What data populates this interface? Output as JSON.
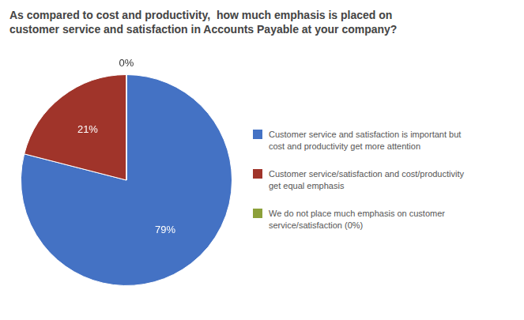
{
  "chart_data": {
    "type": "pie",
    "title": "As compared to cost and productivity,  how much emphasis is placed on\ncustomer service and satisfaction in Accounts Payable at your company?",
    "categories": [
      "Customer service and satisfaction is important but\ncost and productivity get more attention",
      "Customer service/satisfaction and cost/productivity\nget equal emphasis",
      "We do not place much emphasis on customer\nservice/satisfaction (0%)"
    ],
    "values": [
      79,
      21,
      0.0001
    ],
    "value_labels": [
      "79%",
      "21%",
      "0%"
    ],
    "colors": [
      "#4472C4",
      "#A0342A",
      "#8CA03A"
    ],
    "data_labels": true,
    "legend": "right"
  }
}
